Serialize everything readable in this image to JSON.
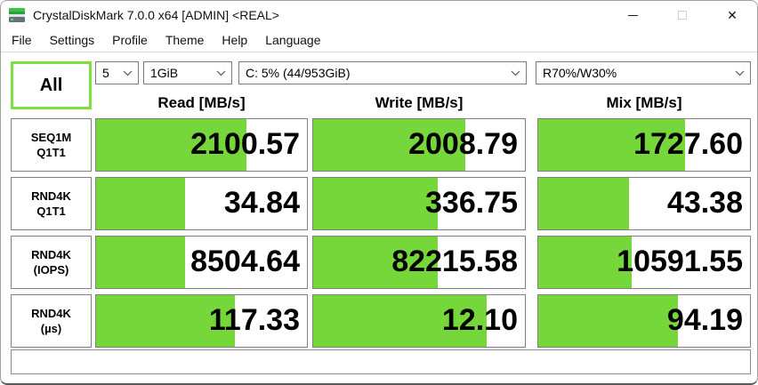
{
  "window": {
    "title": "CrystalDiskMark 7.0.0 x64 [ADMIN] <REAL>",
    "controls": {
      "minimize": "minimize",
      "maximize": "maximize-disabled",
      "close": "close"
    }
  },
  "menu": {
    "items": [
      "File",
      "Settings",
      "Profile",
      "Theme",
      "Help",
      "Language"
    ]
  },
  "toolbar": {
    "all_button": "All",
    "test_count": "5",
    "test_size": "1GiB",
    "target_drive": "C: 5% (44/953GiB)",
    "mix_ratio": "R70%/W30%"
  },
  "columns": [
    "Read [MB/s]",
    "Write [MB/s]",
    "Mix [MB/s]"
  ],
  "rows": [
    {
      "label_line1": "SEQ1M",
      "label_line2": "Q1T1",
      "read": "2100.57",
      "write": "2008.79",
      "mix": "1727.60",
      "read_fill": 71.5,
      "write_fill": 72,
      "mix_fill": 69.5
    },
    {
      "label_line1": "RND4K",
      "label_line2": "Q1T1",
      "read": "34.84",
      "write": "336.75",
      "mix": "43.38",
      "read_fill": 42,
      "write_fill": 59,
      "mix_fill": 43
    },
    {
      "label_line1": "RND4K",
      "label_line2": "(IOPS)",
      "read": "8504.64",
      "write": "82215.58",
      "mix": "10591.55",
      "read_fill": 42,
      "write_fill": 59,
      "mix_fill": 44
    },
    {
      "label_line1": "RND4K",
      "label_line2": "(µs)",
      "read": "117.33",
      "write": "12.10",
      "mix": "94.19",
      "read_fill": 66,
      "write_fill": 82,
      "mix_fill": 66
    }
  ],
  "status_bar": {
    "text": ""
  },
  "colors": {
    "bar_green": "#76d73b",
    "all_button_border": "#7ce03e",
    "cell_border": "#808080"
  }
}
